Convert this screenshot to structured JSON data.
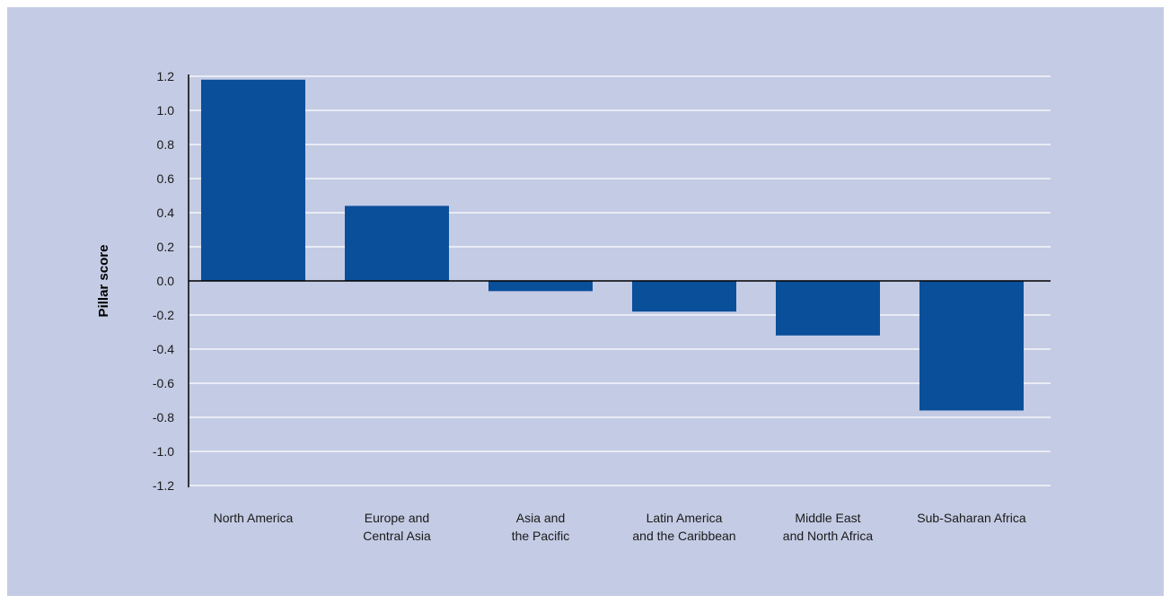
{
  "chart_data": {
    "type": "bar",
    "title": "",
    "xlabel": "",
    "ylabel": "Pillar score",
    "ylim": [
      -1.2,
      1.2
    ],
    "yticks": [
      "1.2",
      "1.0",
      "0.8",
      "0.6",
      "0.4",
      "0.2",
      "0.0",
      "-0.2",
      "-0.4",
      "-0.6",
      "-0.8",
      "-1.0",
      "-1.2"
    ],
    "grid": true,
    "legend": "none",
    "bar_color": "#0a4f9a",
    "background_color": "#c4cbe4",
    "categories": [
      [
        "North America"
      ],
      [
        "Europe and",
        "Central Asia"
      ],
      [
        "Asia and",
        "the Pacific"
      ],
      [
        "Latin America",
        "and the Caribbean"
      ],
      [
        "Middle East",
        "and North Africa"
      ],
      [
        "Sub-Saharan Africa"
      ]
    ],
    "values": [
      1.18,
      0.44,
      -0.06,
      -0.18,
      -0.32,
      -0.76
    ]
  }
}
